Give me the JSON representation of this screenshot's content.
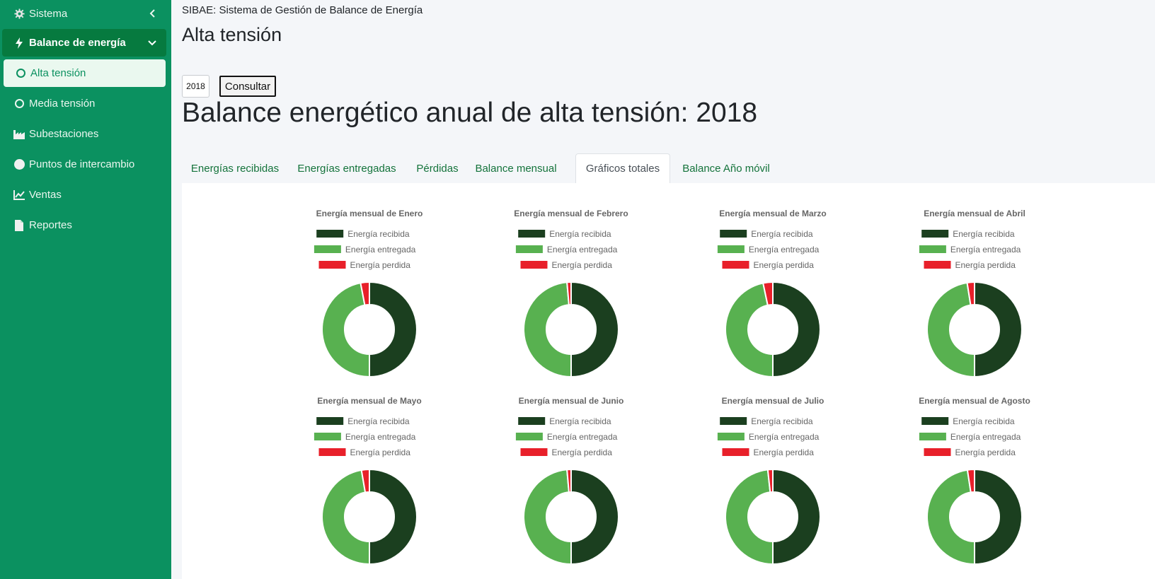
{
  "sidebar": {
    "items": [
      {
        "label": "Sistema",
        "icon": "gear-icon"
      },
      {
        "label": "Balance de energía",
        "icon": "bolt-icon"
      },
      {
        "label": "Alta tensión",
        "icon": "circle-icon"
      },
      {
        "label": "Media tensión",
        "icon": "circle-icon"
      },
      {
        "label": "Subestaciones",
        "icon": "factory-icon"
      },
      {
        "label": "Puntos de intercambio",
        "icon": "filled-circle-icon"
      },
      {
        "label": "Ventas",
        "icon": "chart-line-icon"
      },
      {
        "label": "Reportes",
        "icon": "file-icon"
      }
    ]
  },
  "header": {
    "app_title": "SIBAE: Sistema de Gestión de Balance de Energía",
    "page_title": "Alta tensión"
  },
  "form": {
    "year_value": "2018",
    "consult_label": "Consultar"
  },
  "report": {
    "title": "Balance energético anual de alta tensión: 2018"
  },
  "tabs": [
    {
      "label": "Energías recibidas",
      "active": false
    },
    {
      "label": "Energías entregadas",
      "active": false
    },
    {
      "label": "Pérdidas",
      "active": false
    },
    {
      "label": "Balance mensual",
      "active": false
    },
    {
      "label": "Gráficos totales",
      "active": true
    },
    {
      "label": "Balance Año móvil",
      "active": false
    }
  ],
  "colors": {
    "sidebar": "#0b9160",
    "recibida": "#1b3f1f",
    "entregada": "#58b150",
    "perdida": "#e8202a",
    "link": "#14733b"
  },
  "chart_data": [
    {
      "type": "pie",
      "title": "Energía mensual de Enero",
      "labels": [
        "Energía recibida",
        "Energía entregada",
        "Energía perdida"
      ],
      "values": [
        50,
        47,
        3
      ]
    },
    {
      "type": "pie",
      "title": "Energía mensual de Febrero",
      "labels": [
        "Energía recibida",
        "Energía entregada",
        "Energía perdida"
      ],
      "values": [
        50,
        48.6,
        1.4
      ]
    },
    {
      "type": "pie",
      "title": "Energía mensual de Marzo",
      "labels": [
        "Energía recibida",
        "Energía entregada",
        "Energía perdida"
      ],
      "values": [
        50,
        46.7,
        3.3
      ]
    },
    {
      "type": "pie",
      "title": "Energía mensual de Abril",
      "labels": [
        "Energía recibida",
        "Energía entregada",
        "Energía perdida"
      ],
      "values": [
        50,
        47.5,
        2.5
      ]
    },
    {
      "type": "pie",
      "title": "Energía mensual de Mayo",
      "labels": [
        "Energía recibida",
        "Energía entregada",
        "Energía perdida"
      ],
      "values": [
        50,
        47.3,
        2.7
      ]
    },
    {
      "type": "pie",
      "title": "Energía mensual de Junio",
      "labels": [
        "Energía recibida",
        "Energía entregada",
        "Energía perdida"
      ],
      "values": [
        50,
        48.6,
        1.4
      ]
    },
    {
      "type": "pie",
      "title": "Energía mensual de Julio",
      "labels": [
        "Energía recibida",
        "Energía entregada",
        "Energía perdida"
      ],
      "values": [
        50,
        48.3,
        1.7
      ]
    },
    {
      "type": "pie",
      "title": "Energía mensual de Agosto",
      "labels": [
        "Energía recibida",
        "Energía entregada",
        "Energía perdida"
      ],
      "values": [
        50,
        47.6,
        2.4
      ]
    }
  ]
}
